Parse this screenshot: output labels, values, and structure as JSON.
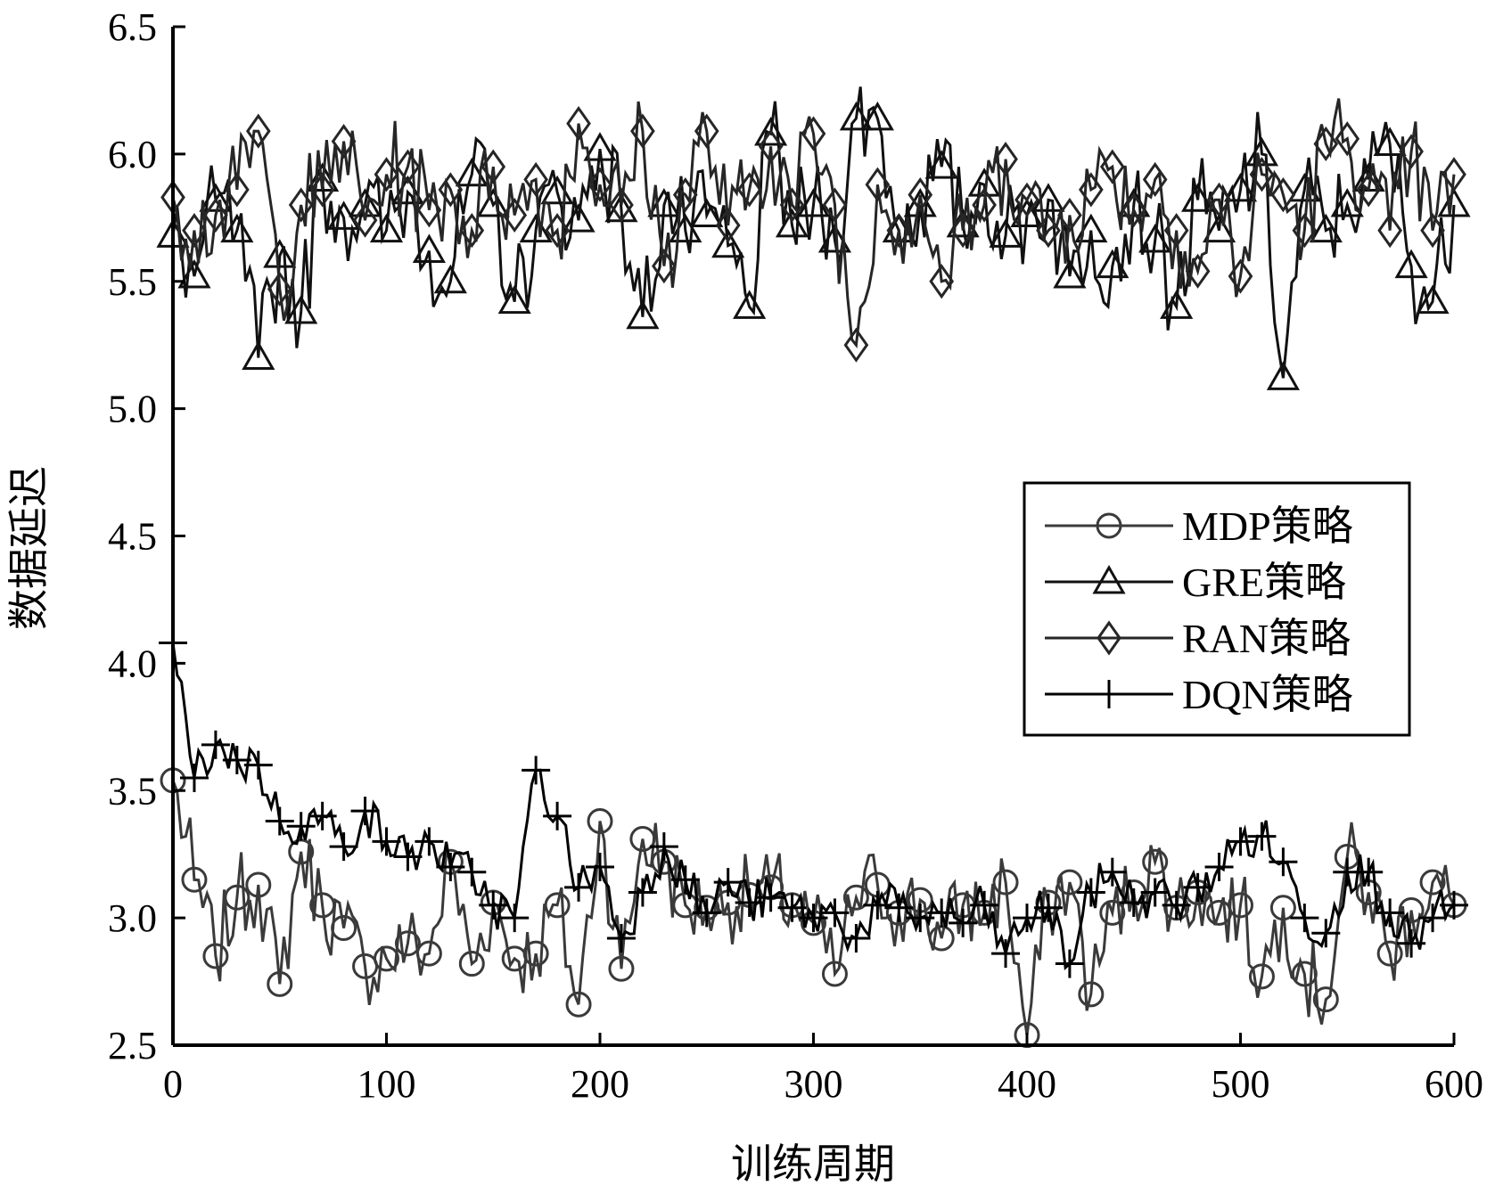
{
  "chart_data": {
    "type": "line",
    "xlabel": "训练周期",
    "ylabel": "数据延迟",
    "xlim": [
      0,
      600
    ],
    "ylim": [
      2.5,
      6.5
    ],
    "xticks": [
      0,
      100,
      200,
      300,
      400,
      500,
      600
    ],
    "yticks": [
      2.5,
      3.0,
      3.5,
      4.0,
      4.5,
      5.0,
      5.5,
      6.0,
      6.5
    ],
    "ytick_labels": [
      "2.5",
      "3.0",
      "3.5",
      "4.0",
      "4.5",
      "5.0",
      "5.5",
      "6.0",
      "6.5"
    ],
    "legend_position": "center-right",
    "grid": false,
    "series": [
      {
        "name": "MDP策略",
        "marker": "circle",
        "color": "#3a3a3a",
        "x": [
          0,
          10,
          20,
          30,
          40,
          50,
          60,
          70,
          80,
          90,
          100,
          110,
          120,
          130,
          140,
          150,
          160,
          170,
          180,
          190,
          200,
          210,
          220,
          230,
          240,
          250,
          260,
          270,
          280,
          290,
          300,
          310,
          320,
          330,
          340,
          350,
          360,
          370,
          380,
          390,
          400,
          410,
          420,
          430,
          440,
          450,
          460,
          470,
          480,
          490,
          500,
          510,
          520,
          530,
          540,
          550,
          560,
          570,
          580,
          590,
          600
        ],
        "y": [
          3.54,
          3.15,
          2.85,
          3.08,
          3.13,
          2.74,
          3.26,
          3.05,
          2.96,
          2.81,
          2.84,
          2.9,
          2.86,
          3.22,
          2.82,
          3.06,
          2.84,
          2.86,
          3.05,
          2.66,
          3.38,
          2.8,
          3.31,
          3.22,
          3.05,
          3.04,
          3.06,
          3.09,
          3.12,
          3.05,
          2.98,
          2.78,
          3.08,
          3.13,
          3.02,
          3.07,
          2.92,
          3.05,
          3.02,
          3.14,
          2.54,
          3.06,
          3.14,
          2.7,
          3.02,
          3.1,
          3.22,
          3.04,
          3.1,
          3.02,
          3.05,
          2.77,
          3.04,
          2.78,
          2.68,
          3.24,
          3.1,
          2.86,
          3.03,
          3.14,
          3.05
        ]
      },
      {
        "name": "GRE策略",
        "marker": "triangle",
        "color": "#111111",
        "x": [
          0,
          10,
          20,
          30,
          40,
          50,
          60,
          70,
          80,
          90,
          100,
          110,
          120,
          130,
          140,
          150,
          160,
          170,
          180,
          190,
          200,
          210,
          220,
          230,
          240,
          250,
          260,
          270,
          280,
          290,
          300,
          310,
          320,
          330,
          340,
          350,
          360,
          370,
          380,
          390,
          400,
          410,
          420,
          430,
          440,
          450,
          460,
          470,
          480,
          490,
          500,
          510,
          520,
          530,
          540,
          550,
          560,
          570,
          580,
          590,
          600
        ],
        "y": [
          5.68,
          5.52,
          5.82,
          5.7,
          5.2,
          5.6,
          5.38,
          5.9,
          5.75,
          5.8,
          5.7,
          5.85,
          5.62,
          5.5,
          5.92,
          5.8,
          5.42,
          5.7,
          5.85,
          5.74,
          6.02,
          5.78,
          5.36,
          5.8,
          5.7,
          5.76,
          5.64,
          5.4,
          6.08,
          5.72,
          5.8,
          5.66,
          6.14,
          6.14,
          5.7,
          5.8,
          5.95,
          5.72,
          5.88,
          5.68,
          5.76,
          5.82,
          5.52,
          5.7,
          5.56,
          5.8,
          5.66,
          5.4,
          5.82,
          5.7,
          5.86,
          6.0,
          5.12,
          5.86,
          5.7,
          5.8,
          5.9,
          6.04,
          5.56,
          5.42,
          5.8
        ]
      },
      {
        "name": "RAN策略",
        "marker": "diamond",
        "color": "#262626",
        "x": [
          0,
          10,
          20,
          30,
          40,
          50,
          60,
          70,
          80,
          90,
          100,
          110,
          120,
          130,
          140,
          150,
          160,
          170,
          180,
          190,
          200,
          210,
          220,
          230,
          240,
          250,
          260,
          270,
          280,
          290,
          300,
          310,
          320,
          330,
          340,
          350,
          360,
          370,
          380,
          390,
          400,
          410,
          420,
          430,
          440,
          450,
          460,
          470,
          480,
          490,
          500,
          510,
          520,
          530,
          540,
          550,
          560,
          570,
          580,
          590,
          600
        ],
        "y": [
          5.83,
          5.7,
          5.76,
          5.86,
          6.09,
          5.47,
          5.8,
          5.86,
          6.05,
          5.74,
          5.92,
          5.95,
          5.78,
          5.86,
          5.7,
          5.95,
          5.76,
          5.9,
          5.7,
          6.12,
          5.88,
          5.8,
          6.09,
          5.56,
          5.84,
          6.09,
          5.72,
          5.86,
          6.03,
          5.8,
          6.08,
          5.8,
          5.25,
          5.88,
          5.7,
          5.84,
          5.5,
          5.7,
          5.8,
          5.98,
          5.82,
          5.7,
          5.76,
          5.86,
          5.95,
          5.78,
          5.9,
          5.7,
          5.54,
          5.82,
          5.52,
          5.92,
          5.84,
          5.7,
          6.04,
          6.06,
          5.86,
          5.7,
          6.01,
          5.7,
          5.92
        ]
      },
      {
        "name": "DQN策略",
        "marker": "plus",
        "color": "#000000",
        "x": [
          0,
          10,
          20,
          30,
          40,
          50,
          60,
          70,
          80,
          90,
          100,
          110,
          120,
          130,
          140,
          150,
          160,
          170,
          180,
          190,
          200,
          210,
          220,
          230,
          240,
          250,
          260,
          270,
          280,
          290,
          300,
          310,
          320,
          330,
          340,
          350,
          360,
          370,
          380,
          390,
          400,
          410,
          420,
          430,
          440,
          450,
          460,
          470,
          480,
          490,
          500,
          510,
          520,
          530,
          540,
          550,
          560,
          570,
          580,
          590,
          600
        ],
        "y": [
          4.08,
          3.55,
          3.68,
          3.62,
          3.6,
          3.38,
          3.36,
          3.4,
          3.28,
          3.42,
          3.3,
          3.24,
          3.3,
          3.2,
          3.18,
          3.05,
          3.0,
          3.58,
          3.4,
          3.12,
          3.2,
          2.92,
          3.1,
          3.28,
          3.15,
          3.02,
          3.14,
          3.06,
          3.08,
          3.04,
          3.0,
          3.02,
          2.92,
          3.05,
          3.04,
          3.0,
          3.02,
          2.98,
          3.05,
          2.86,
          3.0,
          3.04,
          2.82,
          3.1,
          3.18,
          3.06,
          3.1,
          3.05,
          3.12,
          3.2,
          3.3,
          3.32,
          3.22,
          3.0,
          2.94,
          3.18,
          3.18,
          3.02,
          2.9,
          3.0,
          3.05
        ]
      }
    ]
  }
}
